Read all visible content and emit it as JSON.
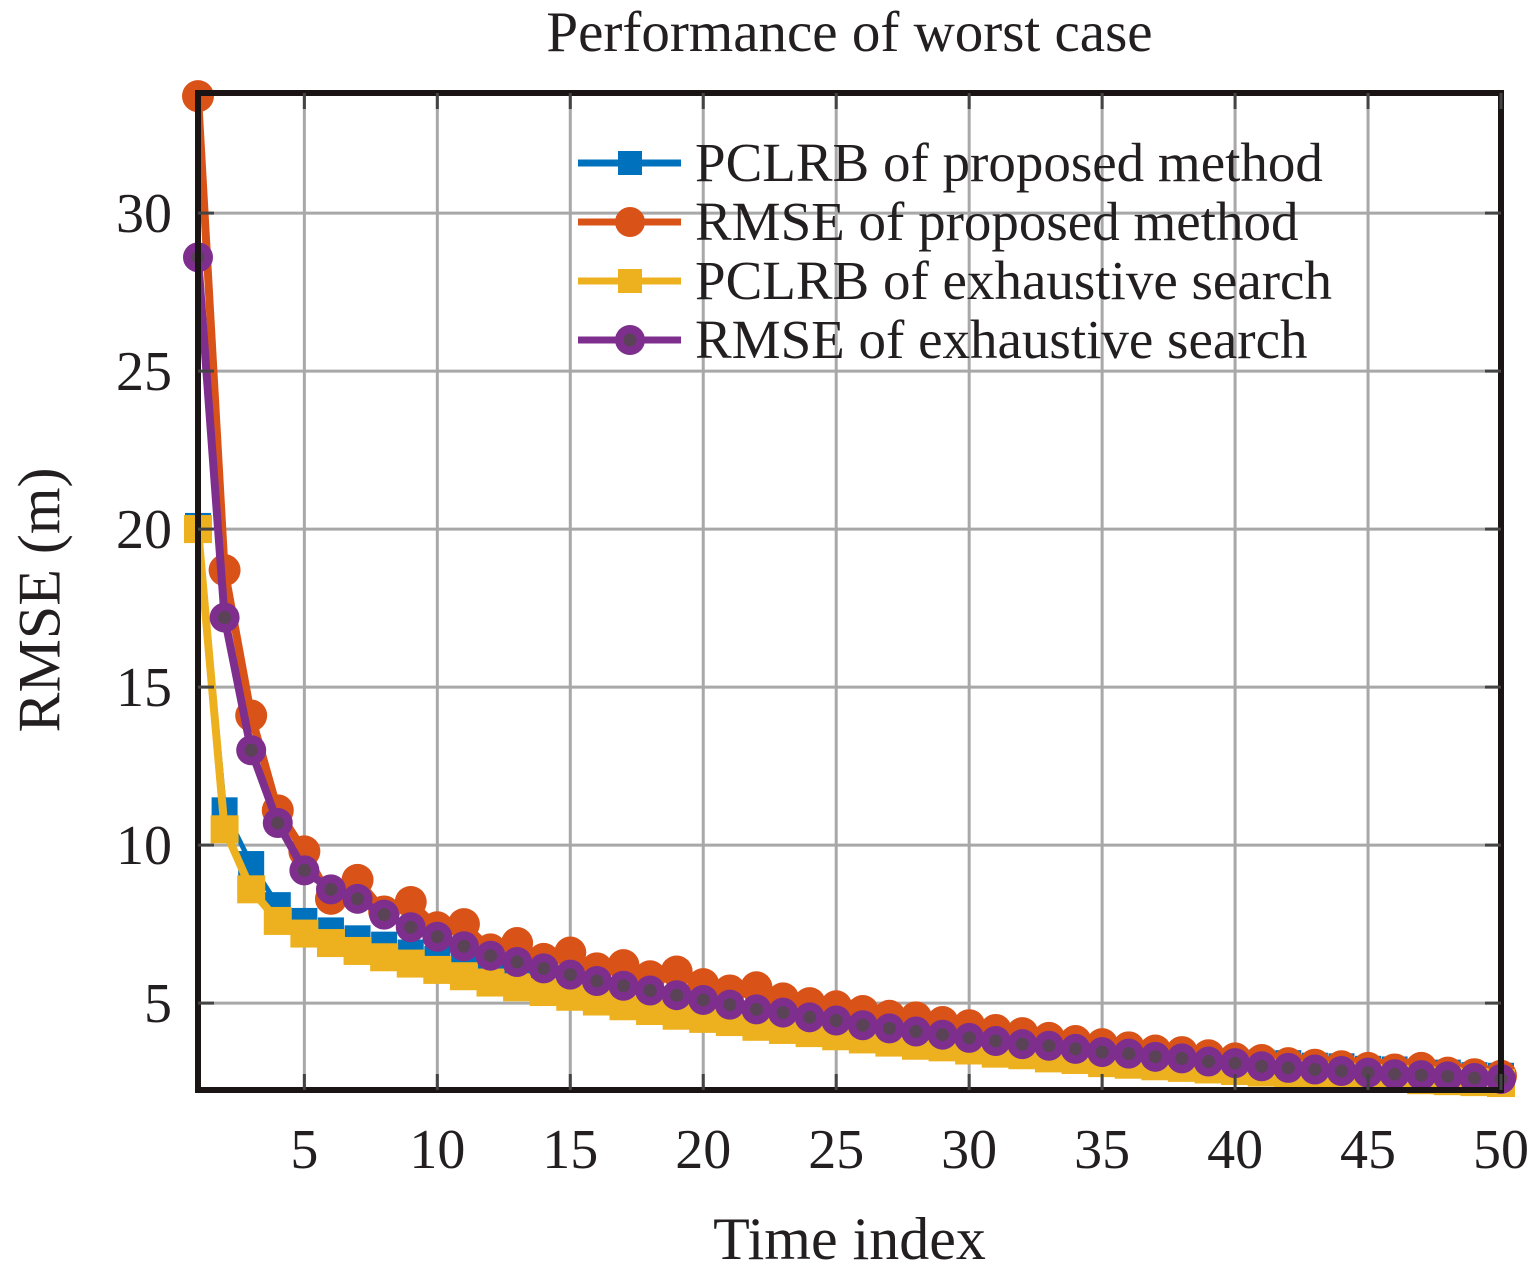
{
  "figure": {
    "title": "Performance of worst case",
    "xlabel": "Time index",
    "ylabel": "RMSE (m)"
  },
  "chart_data": {
    "type": "line",
    "title": "Performance of worst case",
    "xlabel": "Time index",
    "ylabel": "RMSE (m)",
    "grid": true,
    "legend_position": "upper-right-inside",
    "xlim": [
      1,
      50
    ],
    "ylim": [
      2.25,
      33.8
    ],
    "xticks": [
      5,
      10,
      15,
      20,
      25,
      30,
      35,
      40,
      45,
      50
    ],
    "yticks": [
      5,
      10,
      15,
      20,
      25,
      30
    ],
    "x": [
      1,
      2,
      3,
      4,
      5,
      6,
      7,
      8,
      9,
      10,
      11,
      12,
      13,
      14,
      15,
      16,
      17,
      18,
      19,
      20,
      21,
      22,
      23,
      24,
      25,
      26,
      27,
      28,
      29,
      30,
      31,
      32,
      33,
      34,
      35,
      36,
      37,
      38,
      39,
      40,
      41,
      42,
      43,
      44,
      45,
      46,
      47,
      48,
      49,
      50
    ],
    "series": [
      {
        "name": "PCLRB of proposed method",
        "color": "#0072BD",
        "marker": "square",
        "marker_size": 26,
        "line_width": 5,
        "values": [
          20.1,
          11.1,
          9.4,
          8.1,
          7.6,
          7.3,
          7.05,
          6.85,
          6.6,
          6.4,
          6.15,
          5.95,
          5.8,
          5.6,
          5.45,
          5.3,
          5.15,
          5.0,
          4.9,
          4.75,
          4.65,
          4.5,
          4.4,
          4.3,
          4.2,
          4.1,
          4.0,
          3.9,
          3.8,
          3.7,
          3.6,
          3.55,
          3.5,
          3.45,
          3.4,
          3.35,
          3.3,
          3.25,
          3.2,
          3.15,
          3.12,
          3.1,
          3.02,
          3.0,
          2.92,
          2.9,
          2.82,
          2.8,
          2.72,
          2.7
        ]
      },
      {
        "name": "RMSE of proposed method",
        "color": "#D95319",
        "marker": "circle",
        "marker_size": 32,
        "line_width": 8,
        "values": [
          33.7,
          18.7,
          14.1,
          11.1,
          9.8,
          8.3,
          8.9,
          7.9,
          8.2,
          7.4,
          7.5,
          6.7,
          6.9,
          6.4,
          6.6,
          6.1,
          6.2,
          5.85,
          6.0,
          5.6,
          5.4,
          5.5,
          5.15,
          5.0,
          4.9,
          4.75,
          4.6,
          4.55,
          4.4,
          4.3,
          4.15,
          4.05,
          3.9,
          3.8,
          3.7,
          3.6,
          3.5,
          3.45,
          3.35,
          3.25,
          3.2,
          3.1,
          3.05,
          3.0,
          2.95,
          2.9,
          2.95,
          2.8,
          2.75,
          2.7
        ]
      },
      {
        "name": "PCLRB of exhaustive search",
        "color": "#EDB120",
        "marker": "square",
        "marker_size": 28,
        "line_width": 8,
        "values": [
          20.0,
          10.5,
          8.6,
          7.6,
          7.2,
          6.9,
          6.65,
          6.45,
          6.25,
          6.05,
          5.85,
          5.65,
          5.5,
          5.35,
          5.2,
          5.05,
          4.9,
          4.75,
          4.6,
          4.5,
          4.4,
          4.25,
          4.15,
          4.05,
          3.95,
          3.85,
          3.75,
          3.65,
          3.6,
          3.5,
          3.4,
          3.35,
          3.25,
          3.2,
          3.1,
          3.05,
          3.0,
          2.95,
          2.9,
          2.85,
          2.8,
          2.75,
          2.7,
          2.67,
          2.63,
          2.6,
          2.56,
          2.53,
          2.5,
          2.47
        ]
      },
      {
        "name": "RMSE of exhaustive search",
        "color": "#7E2F8E",
        "marker": "circle",
        "marker_size": 30,
        "marker_core_color": "#5a4257",
        "line_width": 8,
        "values": [
          28.6,
          17.2,
          13.0,
          10.7,
          9.2,
          8.6,
          8.3,
          7.8,
          7.4,
          7.1,
          6.8,
          6.5,
          6.3,
          6.1,
          5.9,
          5.7,
          5.55,
          5.4,
          5.25,
          5.1,
          4.95,
          4.8,
          4.7,
          4.55,
          4.45,
          4.3,
          4.2,
          4.1,
          4.0,
          3.9,
          3.8,
          3.7,
          3.65,
          3.55,
          3.45,
          3.4,
          3.3,
          3.25,
          3.15,
          3.1,
          3.0,
          2.95,
          2.9,
          2.85,
          2.8,
          2.75,
          2.72,
          2.68,
          2.63,
          2.6
        ]
      }
    ]
  },
  "style_colors": {
    "axis": "#1b1414",
    "grid": "#a8a8a8",
    "tick": "#444444",
    "text": "#231f20",
    "background": "#ffffff"
  }
}
